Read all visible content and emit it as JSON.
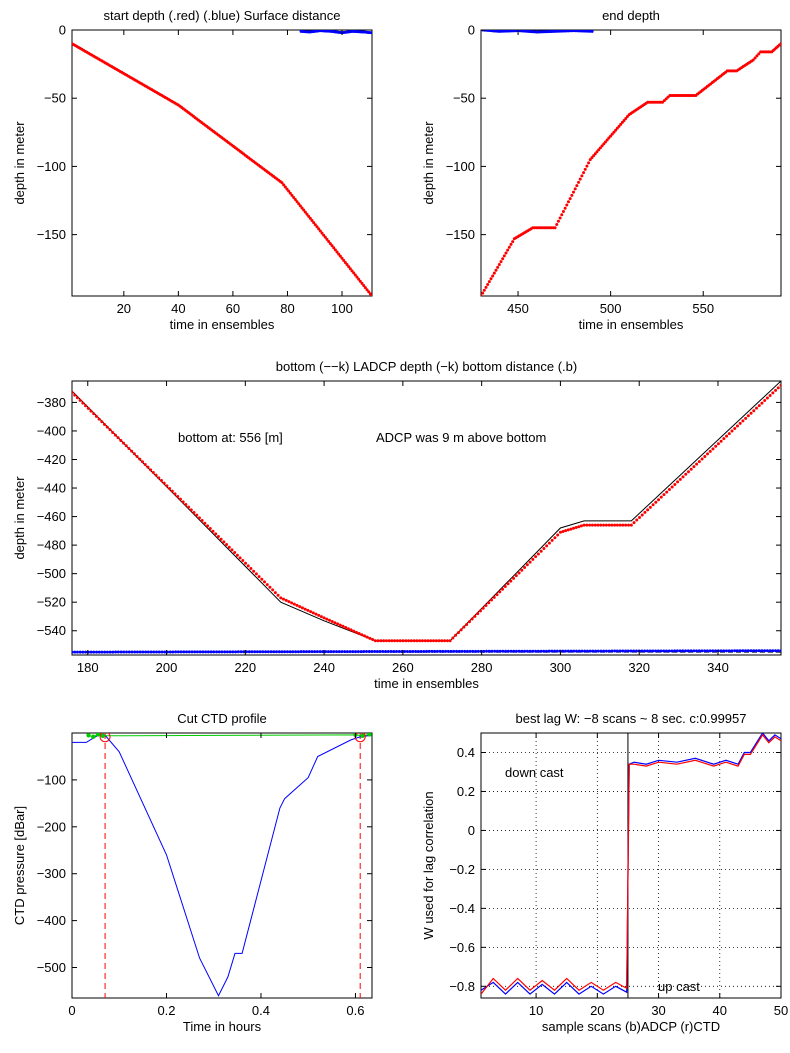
{
  "chart_data": [
    {
      "type": "scatter",
      "title": "start depth (.red) (.blue) Surface distance",
      "xlabel": "time in ensembles",
      "ylabel": "depth in meter",
      "xlim": [
        1,
        111
      ],
      "ylim": [
        -195,
        0
      ],
      "xticks": [
        20,
        40,
        60,
        80,
        100
      ],
      "yticks": [
        0,
        -50,
        -100,
        -150
      ],
      "grid": false,
      "series": [
        {
          "color": "#ff0000",
          "x": [
            1,
            40,
            78,
            111
          ],
          "y": [
            -10,
            -55,
            -112,
            -195
          ]
        },
        {
          "color": "#0000ff",
          "x": [
            85,
            88,
            92,
            96,
            100,
            104,
            108,
            111
          ],
          "y": [
            -1,
            -1.5,
            -0.5,
            -1,
            -2,
            -1,
            -1.5,
            -2
          ]
        }
      ]
    },
    {
      "type": "scatter",
      "title": "end depth",
      "xlabel": "time in ensembles",
      "ylabel": "depth in meter",
      "xlim": [
        430,
        592
      ],
      "ylim": [
        -195,
        0
      ],
      "xticks": [
        450,
        500,
        550
      ],
      "yticks": [
        0,
        -50,
        -100,
        -150
      ],
      "grid": false,
      "series": [
        {
          "color": "#ff0000",
          "x": [
            430,
            448,
            458,
            470,
            489,
            510,
            520,
            528,
            532,
            546,
            563,
            568,
            577,
            581,
            587,
            592
          ],
          "y": [
            -195,
            -153,
            -145,
            -145,
            -95,
            -62,
            -53,
            -53,
            -48,
            -48,
            -30,
            -30,
            -22,
            -16,
            -16,
            -10
          ]
        },
        {
          "color": "#0000ff",
          "x": [
            431,
            440,
            450,
            460,
            470,
            480,
            490
          ],
          "y": [
            0,
            -1,
            -0.5,
            -1.5,
            -1,
            -0.5,
            -1
          ]
        }
      ]
    },
    {
      "type": "line",
      "title": "bottom (−−k) LADCP depth (−k) bottom distance (.b)",
      "xlabel": "time in ensembles",
      "ylabel": "depth in meter",
      "xlim": [
        176,
        356
      ],
      "ylim": [
        -557,
        -365
      ],
      "xticks": [
        180,
        200,
        220,
        240,
        260,
        280,
        300,
        320,
        340
      ],
      "yticks": [
        -380,
        -400,
        -420,
        -440,
        -460,
        -480,
        -500,
        -520,
        -540
      ],
      "grid": false,
      "annotations": [
        "bottom at: 556 [m]",
        "ADCP was 9 m above bottom"
      ],
      "series": [
        {
          "color": "#000000",
          "style": "solid",
          "x": [
            176,
            229,
            240,
            253,
            272,
            300,
            306,
            318,
            356
          ],
          "y": [
            -372,
            -520,
            -533,
            -547,
            -547,
            -468,
            -463,
            -463,
            -365
          ]
        },
        {
          "color": "#ff0000",
          "style": "dots",
          "x": [
            176,
            229,
            240,
            253,
            272,
            300,
            306,
            318,
            356
          ],
          "y": [
            -373,
            -517,
            -531,
            -547,
            -547,
            -471,
            -466,
            -466,
            -368
          ]
        },
        {
          "color": "#000000",
          "style": "dashed",
          "x": [
            176,
            356
          ],
          "y": [
            -555,
            -555
          ]
        },
        {
          "color": "#0000ff",
          "style": "dots",
          "x": [
            176,
            356
          ],
          "y": [
            -555,
            -554
          ]
        }
      ]
    },
    {
      "type": "line",
      "title": "Cut CTD profile",
      "xlabel": "Time in hours",
      "ylabel": "CTD pressure [dBar]",
      "xlim": [
        0,
        0.635
      ],
      "ylim": [
        -565,
        0
      ],
      "xticks": [
        0,
        0.2,
        0.4,
        0.6
      ],
      "yticks": [
        -100,
        -200,
        -300,
        -400,
        -500
      ],
      "grid": false,
      "vlines": [
        0.07,
        0.61
      ],
      "series": [
        {
          "color": "#0000ff",
          "x": [
            0,
            0.03,
            0.055,
            0.07,
            0.1,
            0.2,
            0.27,
            0.31,
            0.33,
            0.345,
            0.36,
            0.44,
            0.45,
            0.5,
            0.52,
            0.59,
            0.61,
            0.635
          ],
          "y": [
            -20,
            -20,
            -5,
            -5,
            -40,
            -260,
            -480,
            -560,
            -520,
            -470,
            -470,
            -160,
            -140,
            -95,
            -50,
            -15,
            -8,
            -5
          ]
        },
        {
          "color": "#00cc00",
          "x": [
            0.035,
            0.045,
            0.055,
            0.065,
            0.6,
            0.615,
            0.63
          ],
          "y": [
            -5,
            -8,
            -3,
            -6,
            -4,
            -6,
            -3
          ]
        }
      ]
    },
    {
      "type": "line",
      "title": "best lag W: −8 scans ~ 8 sec.  c:0.99957",
      "xlabel": "sample scans (b)ADCP (r)CTD",
      "ylabel": "W used for lag correlation",
      "xlim": [
        1,
        50
      ],
      "ylim": [
        -0.86,
        0.5
      ],
      "xticks": [
        10,
        20,
        30,
        40,
        50
      ],
      "yticks": [
        0.4,
        0.2,
        0,
        -0.2,
        -0.4,
        -0.6,
        -0.8
      ],
      "grid": true,
      "vlines": [
        25
      ],
      "annotations": [
        "down cast",
        "up cast"
      ],
      "series": [
        {
          "color": "#0000ff",
          "x": [
            1,
            3,
            5,
            7,
            9,
            11,
            13,
            15,
            17,
            19,
            21,
            23,
            24.8,
            25.2,
            26,
            28,
            30,
            33,
            36,
            39,
            41,
            43,
            44,
            45,
            46,
            47,
            48,
            49,
            50
          ],
          "y": [
            -0.82,
            -0.78,
            -0.84,
            -0.78,
            -0.84,
            -0.79,
            -0.84,
            -0.78,
            -0.84,
            -0.8,
            -0.84,
            -0.8,
            -0.83,
            0.34,
            0.35,
            0.34,
            0.36,
            0.35,
            0.37,
            0.34,
            0.36,
            0.34,
            0.4,
            0.4,
            0.45,
            0.5,
            0.46,
            0.49,
            0.47
          ]
        },
        {
          "color": "#ff0000",
          "x": [
            1,
            3,
            5,
            7,
            9,
            11,
            13,
            15,
            17,
            19,
            21,
            23,
            24.8,
            25.2,
            26,
            28,
            30,
            33,
            36,
            39,
            41,
            43,
            44,
            45,
            46,
            47,
            48,
            49,
            50
          ],
          "y": [
            -0.84,
            -0.76,
            -0.82,
            -0.76,
            -0.82,
            -0.77,
            -0.82,
            -0.76,
            -0.82,
            -0.78,
            -0.82,
            -0.78,
            -0.81,
            0.34,
            0.34,
            0.33,
            0.35,
            0.34,
            0.36,
            0.33,
            0.35,
            0.33,
            0.39,
            0.39,
            0.44,
            0.49,
            0.45,
            0.48,
            0.46
          ]
        }
      ]
    }
  ]
}
